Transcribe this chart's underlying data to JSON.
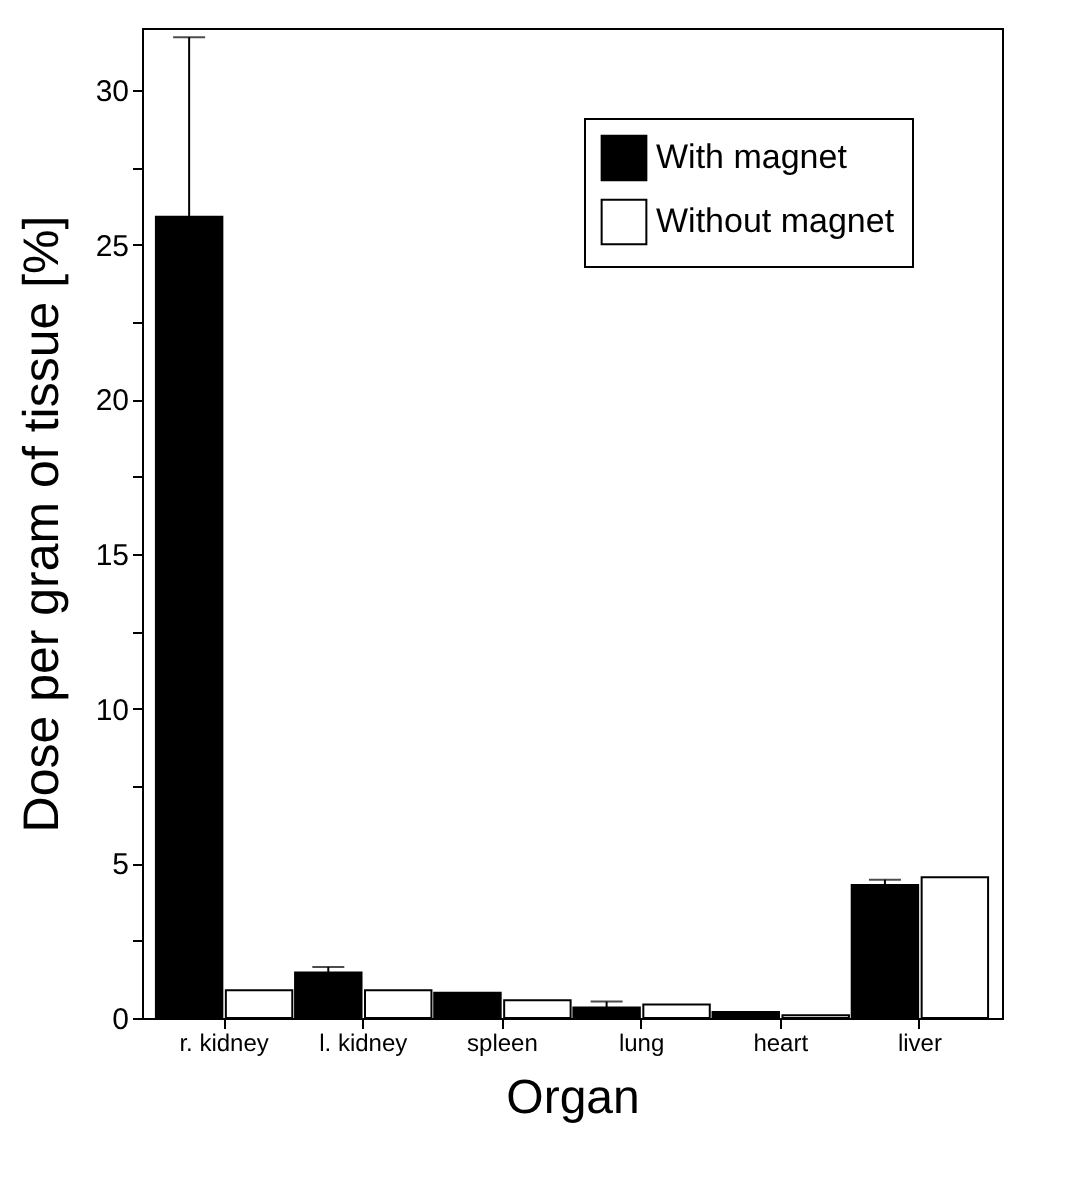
{
  "chart_data": {
    "type": "bar",
    "xlabel": "Organ",
    "ylabel": "Dose per gram of tissue [%]",
    "categories": [
      "r. kidney",
      "l. kidney",
      "spleen",
      "lung",
      "heart",
      "liver"
    ],
    "series": [
      {
        "name": "With magnet",
        "color": "#000000",
        "values": [
          25.9,
          1.47,
          0.82,
          0.34,
          0.19,
          4.3
        ],
        "errors": [
          [
            25.9,
            31.7
          ],
          [
            1.47,
            1.65
          ],
          null,
          [
            0.34,
            0.53
          ],
          null,
          [
            4.3,
            4.47
          ]
        ]
      },
      {
        "name": "Without magnet",
        "color": "#ffffff",
        "values": [
          0.9,
          0.9,
          0.57,
          0.44,
          0.09,
          4.55
        ],
        "errors": [
          null,
          null,
          null,
          null,
          null,
          null
        ]
      }
    ],
    "ylim": [
      0,
      32
    ],
    "yticks": [
      0,
      {
        "value": 2.5,
        "label": null
      },
      5,
      {
        "value": 7.5,
        "label": null
      },
      10,
      {
        "value": 12.5,
        "label": null
      },
      15,
      {
        "value": 17.5,
        "label": null
      },
      20,
      {
        "value": 22.5,
        "label": null
      },
      25,
      {
        "value": 27.5,
        "label": null
      },
      30
    ],
    "legend": "top right",
    "grid": false
  }
}
